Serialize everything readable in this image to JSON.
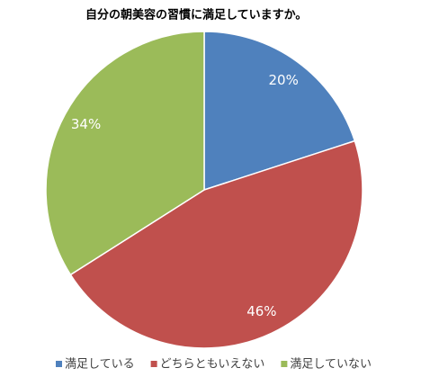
{
  "chart_data": {
    "type": "pie",
    "title": "自分の朝美容の習慣に満足していますか。",
    "categories": [
      "満足している",
      "どちらともいえない",
      "満足していない"
    ],
    "values": [
      20,
      46,
      34
    ],
    "value_labels": [
      "20%",
      "46%",
      "34%"
    ],
    "colors": [
      "#4f81bd",
      "#c0504d",
      "#9bbb59"
    ],
    "legend": "bottom"
  }
}
